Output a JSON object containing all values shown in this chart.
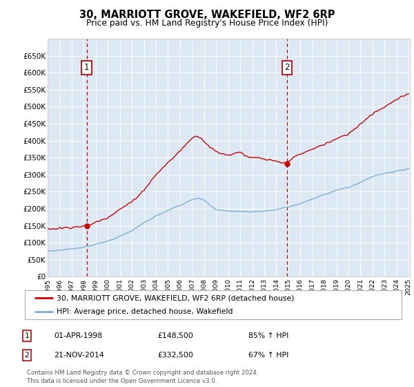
{
  "title": "30, MARRIOTT GROVE, WAKEFIELD, WF2 6RP",
  "subtitle": "Price paid vs. HM Land Registry's House Price Index (HPI)",
  "legend_line1": "30, MARRIOTT GROVE, WAKEFIELD, WF2 6RP (detached house)",
  "legend_line2": "HPI: Average price, detached house, Wakefield",
  "annotation1_label": "1",
  "annotation1_date": "01-APR-1998",
  "annotation1_price": "£148,500",
  "annotation1_hpi": "85% ↑ HPI",
  "annotation2_label": "2",
  "annotation2_date": "21-NOV-2014",
  "annotation2_price": "£332,500",
  "annotation2_hpi": "67% ↑ HPI",
  "footer": "Contains HM Land Registry data © Crown copyright and database right 2024.\nThis data is licensed under the Open Government Licence v3.0.",
  "red_color": "#cc0000",
  "blue_color": "#7bafd4",
  "bg_color": "#dce9f5",
  "grid_color": "#ffffff",
  "annotation_line_color": "#cc0000",
  "yticks": [
    0,
    50000,
    100000,
    150000,
    200000,
    250000,
    300000,
    350000,
    400000,
    450000,
    500000,
    550000,
    600000,
    650000
  ],
  "sale1_year": 1998.25,
  "sale1_price": 148500,
  "sale2_year": 2014.9,
  "sale2_price": 332500
}
